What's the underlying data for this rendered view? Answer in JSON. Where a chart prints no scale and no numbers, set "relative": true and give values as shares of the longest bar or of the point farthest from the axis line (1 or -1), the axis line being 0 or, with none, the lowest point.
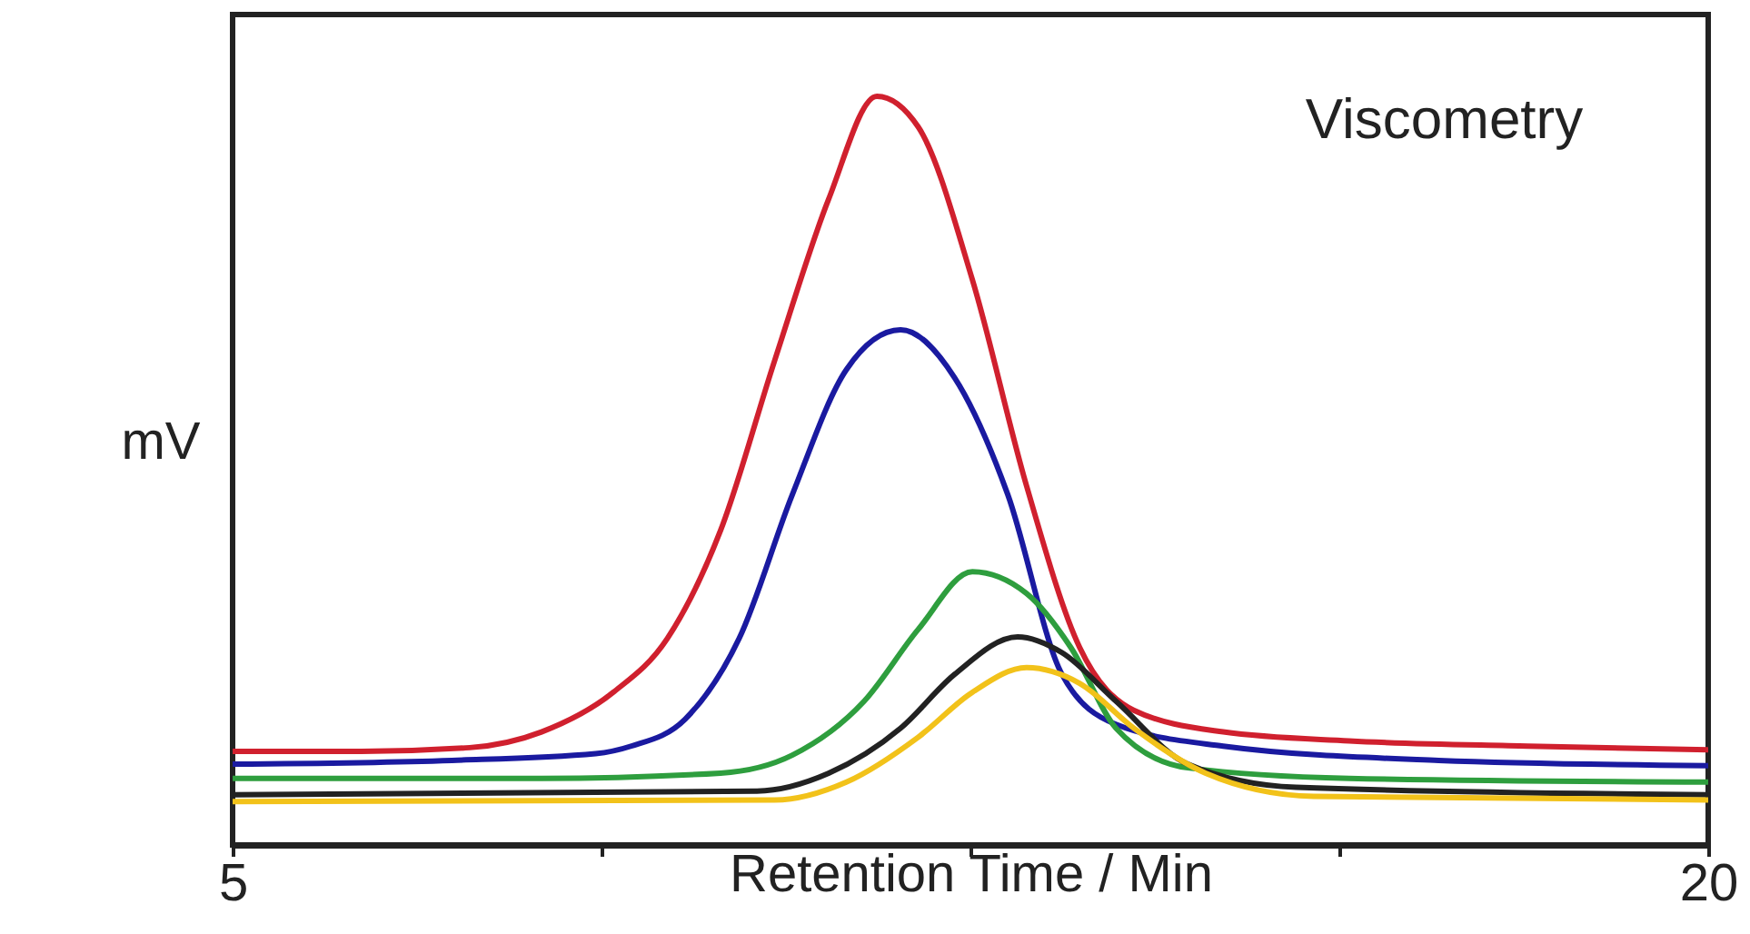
{
  "chart_data": {
    "type": "line",
    "title": "Viscometry",
    "xlabel": "Retention Time / Min",
    "ylabel": "mV",
    "relative": true,
    "xlim": [
      5,
      20
    ],
    "xticks": [
      5,
      {
        "value": 8.75,
        "label": null
      },
      {
        "value": 12.5,
        "label": null
      },
      {
        "value": 16.25,
        "label": null
      },
      20
    ],
    "grid": false,
    "marker": "none",
    "line_style": "solid",
    "series": [
      {
        "color": "#d0202e",
        "x": [
          5,
          6.31,
          7.41,
          8.14,
          8.87,
          9.42,
          9.96,
          10.51,
          11.06,
          11.55,
          11.97,
          12.52,
          13.07,
          13.61,
          14.16,
          15.07,
          16.35,
          18.17,
          20
        ],
        "values": [
          0.125,
          0.125,
          0.13,
          0.151,
          0.204,
          0.276,
          0.42,
          0.647,
          0.863,
          1.0,
          0.959,
          0.755,
          0.48,
          0.264,
          0.18,
          0.151,
          0.139,
          0.132,
          0.127
        ]
      },
      {
        "color": "#1a1aa0",
        "x": [
          5,
          7.23,
          8.69,
          9.05,
          9.6,
          10.15,
          10.69,
          11.24,
          11.79,
          12.34,
          12.88,
          13.43,
          13.98,
          15.07,
          17.26,
          20
        ],
        "values": [
          0.108,
          0.113,
          0.122,
          0.132,
          0.168,
          0.276,
          0.468,
          0.635,
          0.688,
          0.624,
          0.468,
          0.228,
          0.161,
          0.132,
          0.113,
          0.106
        ]
      },
      {
        "color": "#2e9e3e",
        "x": [
          5,
          8.14,
          9.96,
          10.69,
          11.42,
          11.97,
          12.52,
          13.07,
          13.52,
          13.98,
          14.71,
          16.35,
          20
        ],
        "values": [
          0.089,
          0.089,
          0.096,
          0.12,
          0.192,
          0.288,
          0.365,
          0.336,
          0.264,
          0.156,
          0.103,
          0.089,
          0.084
        ]
      },
      {
        "color": "#222222",
        "x": [
          5,
          10.33,
          11.06,
          11.79,
          12.34,
          12.98,
          13.43,
          13.98,
          14.71,
          15.81,
          20
        ],
        "values": [
          0.067,
          0.072,
          0.096,
          0.156,
          0.228,
          0.278,
          0.257,
          0.192,
          0.108,
          0.077,
          0.067
        ]
      },
      {
        "color": "#f2c21a",
        "x": [
          5,
          10.51,
          11.24,
          11.97,
          12.52,
          13.07,
          13.61,
          14.16,
          14.89,
          15.99,
          20
        ],
        "values": [
          0.058,
          0.06,
          0.084,
          0.144,
          0.204,
          0.237,
          0.216,
          0.156,
          0.096,
          0.065,
          0.06
        ]
      }
    ]
  }
}
